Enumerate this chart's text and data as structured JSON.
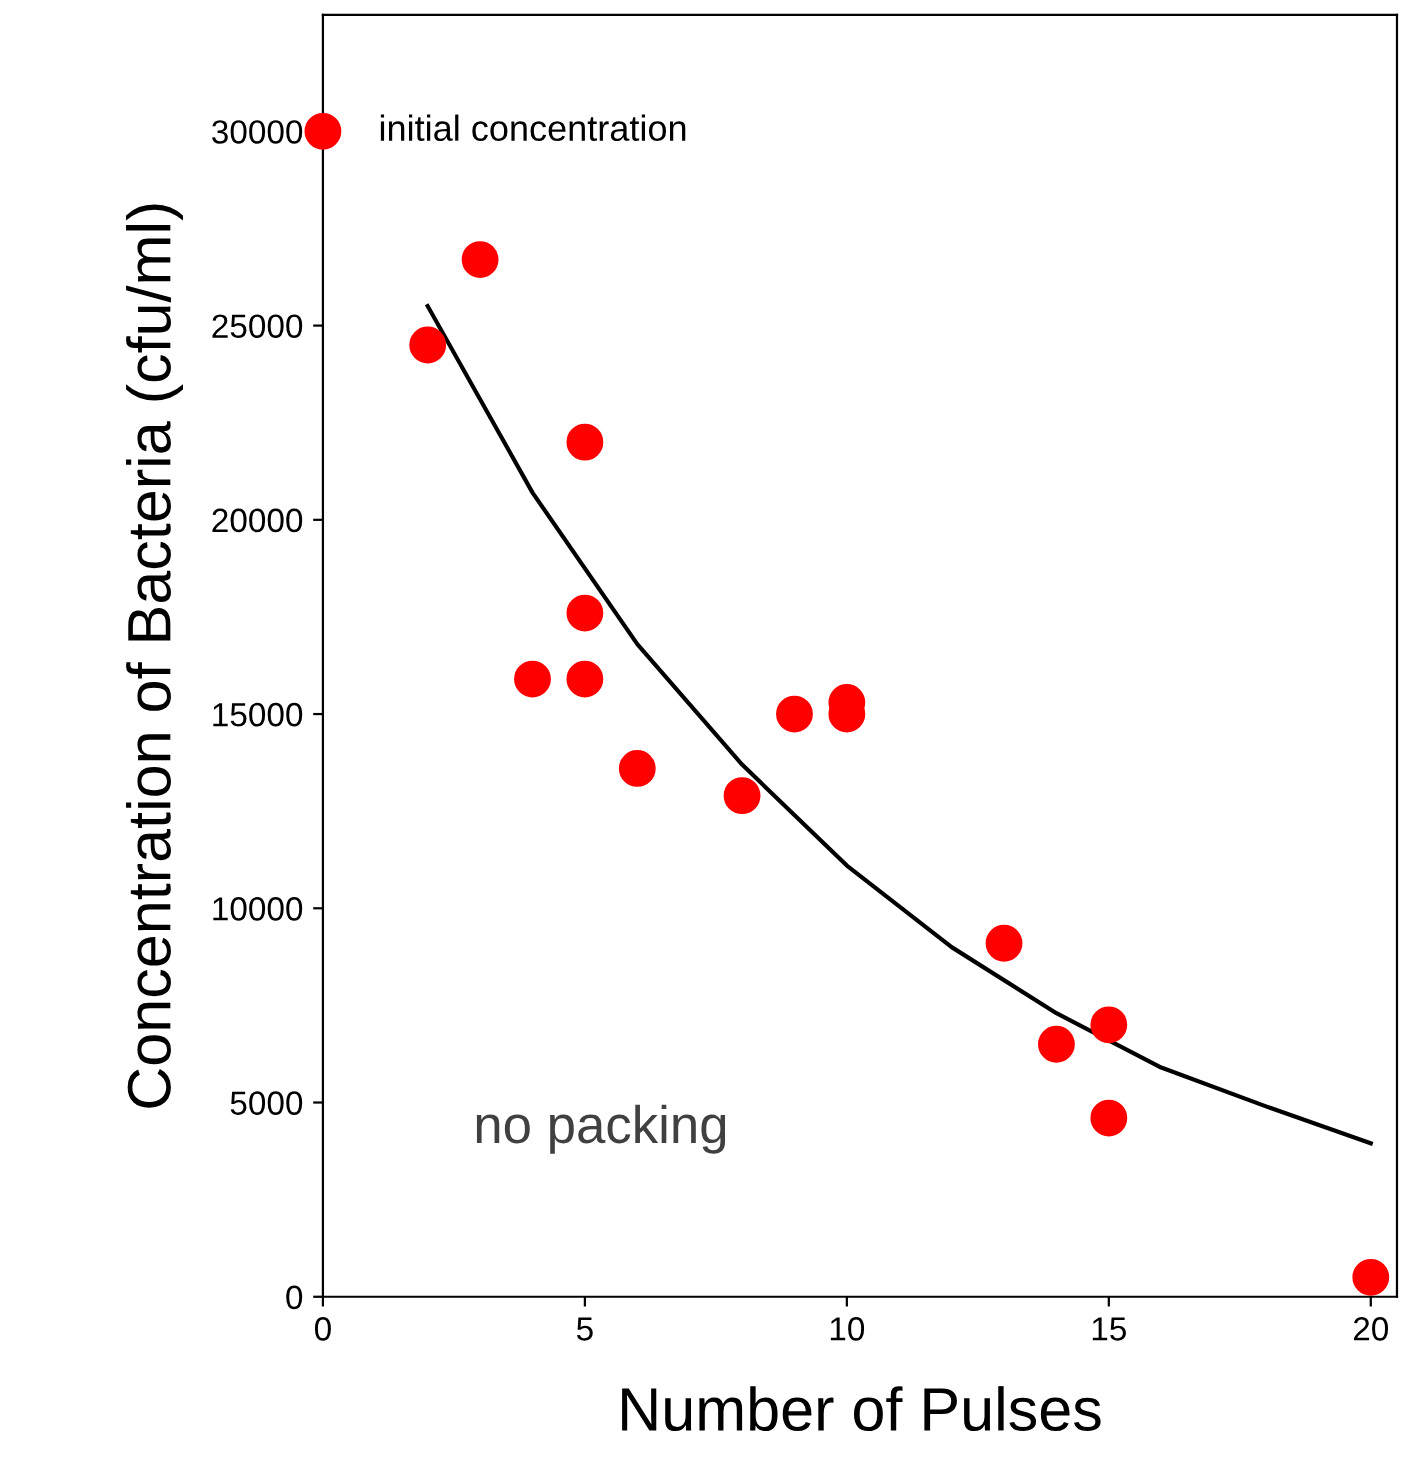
{
  "chart_data": {
    "type": "scatter",
    "xlabel": "Number of Pulses",
    "ylabel": "Concentration of Bacteria (cfu/ml)",
    "xlim": [
      0,
      20.5
    ],
    "xticks": [
      0,
      5,
      10,
      15,
      20
    ],
    "ylim": [
      0,
      33000
    ],
    "yticks": [
      0,
      5000,
      10000,
      15000,
      20000,
      25000,
      30000
    ],
    "grid": false,
    "legend": false,
    "marker": "circle",
    "series": [
      {
        "color": "#ff0000",
        "x": [
          0,
          2,
          3,
          5,
          5,
          4,
          5,
          6,
          8,
          9,
          10,
          10,
          13,
          14,
          15,
          15,
          20
        ],
        "values": [
          30000,
          24500,
          26700,
          22000,
          17600,
          15900,
          15900,
          13600,
          12900,
          15000,
          15300,
          15000,
          9100,
          6500,
          7000,
          4600,
          500
        ]
      },
      {
        "type": "line",
        "marker": "none",
        "color": "#000000",
        "line_style": "solid",
        "x": [
          2,
          4,
          6,
          8,
          10,
          12,
          14,
          16,
          18,
          20
        ],
        "values": [
          25500,
          20700,
          16800,
          13700,
          11100,
          9000,
          7300,
          5900,
          4900,
          3950
        ]
      }
    ],
    "annotations": [
      {
        "text": "initial concentration",
        "x": 0,
        "y": 30000
      },
      "no packing"
    ]
  }
}
